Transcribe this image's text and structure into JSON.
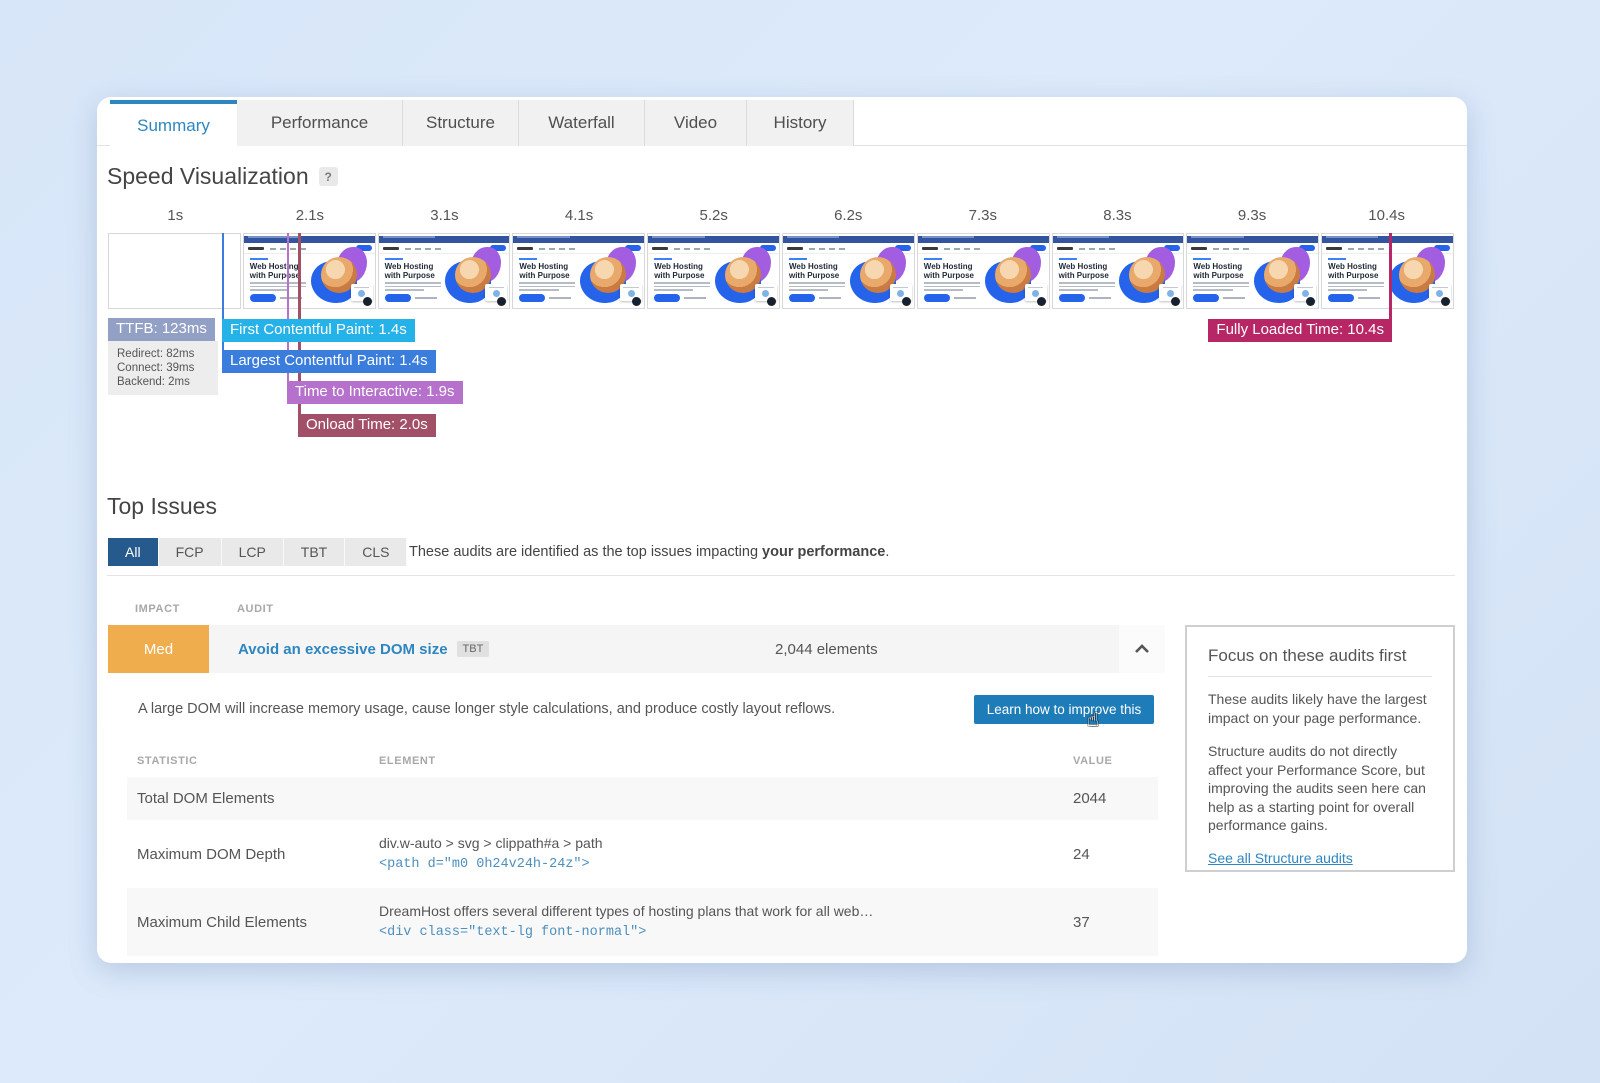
{
  "tabs": {
    "items": [
      {
        "label": "Summary"
      },
      {
        "label": "Performance"
      },
      {
        "label": "Structure"
      },
      {
        "label": "Waterfall"
      },
      {
        "label": "Video"
      },
      {
        "label": "History"
      }
    ]
  },
  "viz": {
    "title": "Speed Visualization",
    "help": "?",
    "frame_count": 10,
    "blank_frames": 1,
    "ticks": [
      "1s",
      "2.1s",
      "3.1s",
      "4.1s",
      "5.2s",
      "6.2s",
      "7.3s",
      "8.3s",
      "9.3s",
      "10.4s"
    ],
    "thumb": {
      "heading": "Web Hosting with Purpose"
    },
    "badges": {
      "ttfb": "TTFB: 123ms",
      "fcp": "First Contentful Paint: 1.4s",
      "lcp": "Largest Contentful Paint: 1.4s",
      "tti": "Time to Interactive: 1.9s",
      "onload": "Onload Time: 2.0s",
      "fully": "Fully Loaded Time: 10.4s"
    },
    "sub": [
      "Redirect: 82ms",
      "Connect: 39ms",
      "Backend: 2ms"
    ],
    "colors": {
      "ttfb": "#93a0c6",
      "fcp": "#25b2e8",
      "lcp": "#3b7ddd",
      "tti": "#b671cc",
      "onload": "#a24f68",
      "fully": "#b82765"
    }
  },
  "issues": {
    "title": "Top Issues",
    "filters": [
      "All",
      "FCP",
      "LCP",
      "TBT",
      "CLS"
    ],
    "caption": {
      "pre": "These audits are identified as the top issues impacting ",
      "bold": "your performance",
      "post": "."
    },
    "cols": {
      "impact": "IMPACT",
      "audit": "AUDIT"
    },
    "row": {
      "impact": "Med",
      "title": "Avoid an excessive DOM size",
      "tag": "TBT",
      "value": "2,044 elements",
      "impact_color": "#f0ad4e"
    },
    "desc": "A large DOM will increase memory usage, cause longer style calculations, and produce costly layout reflows.",
    "button": "Learn how to improve this",
    "table": {
      "h0": "STATISTIC",
      "h1": "ELEMENT",
      "h2": "VALUE",
      "rows": [
        {
          "stat": "Total DOM Elements",
          "sel": "",
          "code": "",
          "val": "2044"
        },
        {
          "stat": "Maximum DOM Depth",
          "sel": "div.w-auto > svg > clippath#a > path",
          "code": "<path d=\"m0 0h24v24h-24z\">",
          "val": "24"
        },
        {
          "stat": "Maximum Child Elements",
          "sel": "DreamHost offers several different types of hosting plans that work for all web…",
          "code": "<div class=\"text-lg font-normal\">",
          "val": "37"
        }
      ]
    }
  },
  "panel": {
    "title": "Focus on these audits first",
    "p1": "These audits likely have the largest impact on your page performance.",
    "p2": "Structure audits do not directly affect your Performance Score, but improving the audits seen here can help as a starting point for overall performance gains.",
    "link": "See all Structure audits"
  }
}
